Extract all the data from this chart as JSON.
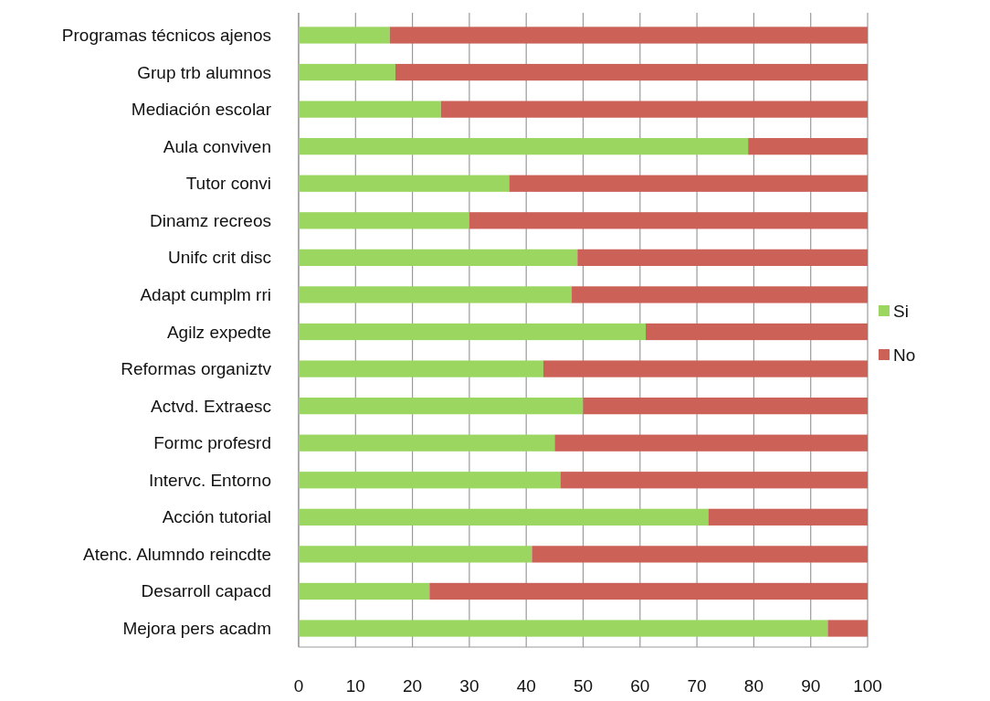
{
  "chart_data": {
    "type": "bar",
    "orientation": "horizontal",
    "stacked": true,
    "categories": [
      "Programas técnicos ajenos",
      "Grup trb alumnos",
      "Mediación escolar",
      "Aula conviven",
      "Tutor convi",
      "Dinamz recreos",
      "Unifc crit disc",
      "Adapt cumplm rri",
      "Agilz expedte",
      "Reformas organiztv",
      "Actvd. Extraesc",
      "Formc profesrd",
      "Intervc. Entorno",
      "Acción tutorial",
      "Atenc. Alumndo reincdte",
      "Desarroll capacd",
      "Mejora pers acadm"
    ],
    "series": [
      {
        "name": "Si",
        "color": "#9bd660",
        "values": [
          16,
          17,
          25,
          79,
          37,
          30,
          49,
          48,
          61,
          43,
          50,
          45,
          46,
          72,
          41,
          23,
          93
        ]
      },
      {
        "name": "No",
        "color": "#cc6158",
        "values": [
          84,
          83,
          75,
          21,
          63,
          70,
          51,
          52,
          39,
          57,
          50,
          55,
          54,
          28,
          59,
          77,
          7
        ]
      }
    ],
    "xlim": [
      0,
      100
    ],
    "xticks": [
      0,
      10,
      20,
      30,
      40,
      50,
      60,
      70,
      80,
      90,
      100
    ],
    "grid": "x",
    "legend": "right"
  }
}
